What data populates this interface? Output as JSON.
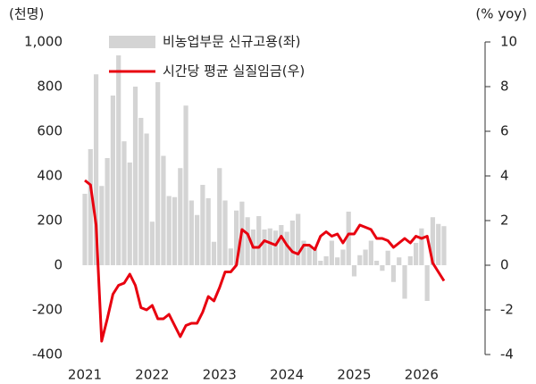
{
  "chart_data": {
    "type": "bar",
    "y_label": "(천명)",
    "y2_label": "(% yoy)",
    "categories": [
      "2021",
      null,
      null,
      null,
      null,
      null,
      null,
      null,
      null,
      null,
      null,
      null,
      "2022",
      null,
      null,
      null,
      null,
      null,
      null,
      null,
      null,
      null,
      null,
      null,
      "2023",
      null,
      null,
      null,
      null,
      null,
      null,
      null,
      null,
      null,
      null,
      null,
      "2024",
      null,
      null,
      null,
      null,
      null,
      null,
      null,
      null,
      null,
      null,
      null,
      "2025",
      null,
      null,
      null,
      null,
      null,
      null,
      null,
      null,
      null,
      null,
      null,
      "2026",
      null,
      null,
      null,
      null
    ],
    "series": [
      {
        "name": "비농업부문 신규고용(좌)",
        "type": "bar",
        "color": "#d4d4d4",
        "values": [
          320,
          520,
          855,
          355,
          480,
          760,
          940,
          555,
          460,
          800,
          660,
          590,
          195,
          820,
          490,
          310,
          305,
          435,
          715,
          290,
          225,
          360,
          300,
          105,
          435,
          290,
          75,
          245,
          285,
          215,
          160,
          220,
          160,
          165,
          155,
          180,
          150,
          200,
          230,
          110,
          90,
          75,
          20,
          40,
          110,
          35,
          70,
          240,
          -50,
          45,
          70,
          110,
          20,
          -25,
          65,
          -75,
          35,
          -150,
          40,
          100,
          165,
          -160,
          215,
          185,
          175
        ]
      },
      {
        "name": "시간당 평균 실질임금(우)",
        "type": "line",
        "axis": "y2",
        "color": "#e8000f",
        "values": [
          3.8,
          3.6,
          1.8,
          -3.4,
          -2.4,
          -1.3,
          -0.9,
          -0.8,
          -0.4,
          -0.9,
          -1.9,
          -2.0,
          -1.8,
          -2.4,
          -2.4,
          -2.2,
          -2.7,
          -3.2,
          -2.7,
          -2.6,
          -2.6,
          -2.1,
          -1.4,
          -1.6,
          -1.0,
          -0.3,
          -0.3,
          0.0,
          1.6,
          1.4,
          0.8,
          0.8,
          1.1,
          1.0,
          0.9,
          1.3,
          0.9,
          0.6,
          0.5,
          0.9,
          0.9,
          0.7,
          1.3,
          1.5,
          1.3,
          1.4,
          1.0,
          1.4,
          1.4,
          1.8,
          1.7,
          1.6,
          1.2,
          1.2,
          1.1,
          0.8,
          1.0,
          1.2,
          1.0,
          1.3,
          1.2,
          1.3,
          0.1,
          -0.3,
          -0.7
        ]
      }
    ],
    "ylim": [
      -400,
      1000
    ],
    "yticks": [
      -400,
      -200,
      0,
      200,
      400,
      600,
      800,
      {
        "value": 1000,
        "label": "1,000"
      }
    ],
    "y2lim": [
      -4,
      10
    ],
    "y2ticks": [
      -4,
      -2,
      0,
      2,
      4,
      6,
      8,
      10
    ],
    "legend": "top-left"
  }
}
